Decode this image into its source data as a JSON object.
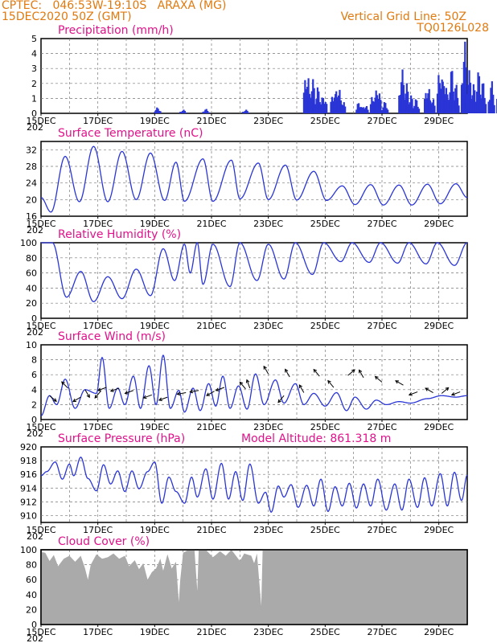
{
  "header": {
    "line1": "CPTEC:   046:53W-19:10S   ARAXA (MG)",
    "line2": "15DEC2020 50Z (GMT)",
    "right1": "Vertical Grid Line: 50Z",
    "right2": "TQ0126L028"
  },
  "colors": {
    "header": "#e07a10",
    "title": "#e0128a",
    "line": "#2a35d6",
    "cloud": "#aaaaaa"
  },
  "x_labels": [
    "15DEC",
    "17DEC",
    "19DEC",
    "21DEC",
    "23DEC",
    "25DEC",
    "27DEC",
    "29DEC"
  ],
  "x_stub": "202",
  "chart_data": [
    {
      "id": "precip",
      "type": "bar",
      "title": "Precipitation (mm/h)",
      "ylim": [
        0,
        5
      ],
      "yticks": [
        0,
        1,
        2,
        3,
        4,
        5
      ],
      "x_days": [
        0,
        15
      ],
      "events": [
        [
          4.1,
          0.4
        ],
        [
          5.0,
          0.25
        ],
        [
          5.8,
          0.3
        ],
        [
          7.2,
          0.25
        ],
        [
          9.35,
          3.0
        ],
        [
          9.55,
          2.4
        ],
        [
          9.75,
          1.8
        ],
        [
          9.95,
          1.3
        ],
        [
          10.3,
          1.6
        ],
        [
          10.45,
          2.0
        ],
        [
          10.6,
          1.0
        ],
        [
          11.2,
          0.8
        ],
        [
          11.4,
          0.6
        ],
        [
          11.7,
          1.4
        ],
        [
          11.85,
          1.9
        ],
        [
          12.1,
          0.8
        ],
        [
          12.7,
          3.0
        ],
        [
          12.85,
          2.1
        ],
        [
          13.0,
          1.3
        ],
        [
          13.2,
          1.0
        ],
        [
          13.6,
          2.0
        ],
        [
          13.75,
          1.2
        ],
        [
          14.05,
          3.2
        ],
        [
          14.2,
          2.6
        ],
        [
          14.45,
          3.1
        ],
        [
          14.6,
          2.0
        ],
        [
          14.9,
          4.9
        ],
        [
          15.05,
          3.0
        ],
        [
          15.2,
          2.1
        ],
        [
          15.4,
          2.9
        ],
        [
          15.55,
          2.2
        ],
        [
          15.85,
          2.2
        ],
        [
          16.15,
          2.3
        ],
        [
          16.3,
          1.6
        ],
        [
          16.6,
          2.8
        ],
        [
          16.75,
          1.8
        ],
        [
          17.05,
          2.0
        ],
        [
          17.2,
          1.3
        ],
        [
          17.55,
          3.1
        ],
        [
          17.7,
          1.9
        ],
        [
          17.95,
          1.4
        ],
        [
          18.35,
          2.4
        ],
        [
          18.5,
          1.7
        ]
      ]
    },
    {
      "id": "temp",
      "type": "line",
      "title": "Surface Temperature (nC)",
      "ylim": [
        16,
        34
      ],
      "yticks": [
        16,
        20,
        24,
        28,
        32
      ],
      "x_days": [
        0,
        15
      ],
      "peaks": [
        [
          0.0,
          20.5
        ],
        [
          0.35,
          17.0
        ],
        [
          0.85,
          30.4
        ],
        [
          1.35,
          19.5
        ],
        [
          1.85,
          32.8
        ],
        [
          2.35,
          19.5
        ],
        [
          2.85,
          31.6
        ],
        [
          3.35,
          20.0
        ],
        [
          3.85,
          31.2
        ],
        [
          4.35,
          19.8
        ],
        [
          4.75,
          29.0
        ],
        [
          5.05,
          19.6
        ],
        [
          5.7,
          29.8
        ],
        [
          6.05,
          19.6
        ],
        [
          6.7,
          29.5
        ],
        [
          7.0,
          20.2
        ],
        [
          7.65,
          28.8
        ],
        [
          8.0,
          20.0
        ],
        [
          8.6,
          28.3
        ],
        [
          9.0,
          19.9
        ],
        [
          9.6,
          26.8
        ],
        [
          10.05,
          19.8
        ],
        [
          10.6,
          23.3
        ],
        [
          11.05,
          18.8
        ],
        [
          11.6,
          23.6
        ],
        [
          12.05,
          18.7
        ],
        [
          12.6,
          23.5
        ],
        [
          13.05,
          18.7
        ],
        [
          13.6,
          23.7
        ],
        [
          14.05,
          19.0
        ],
        [
          14.6,
          23.8
        ],
        [
          15.0,
          20.5
        ]
      ]
    },
    {
      "id": "rh",
      "type": "line",
      "title": "Relative Humidity (%)",
      "ylim": [
        0,
        100
      ],
      "yticks": [
        0,
        20,
        40,
        60,
        80,
        100
      ],
      "x_days": [
        0,
        15
      ],
      "peaks": [
        [
          0.0,
          100
        ],
        [
          0.4,
          100
        ],
        [
          0.9,
          28
        ],
        [
          1.4,
          62
        ],
        [
          1.85,
          22
        ],
        [
          2.35,
          55
        ],
        [
          2.85,
          26
        ],
        [
          3.35,
          65
        ],
        [
          3.85,
          30
        ],
        [
          4.3,
          92
        ],
        [
          4.7,
          50
        ],
        [
          5.05,
          98
        ],
        [
          5.25,
          60
        ],
        [
          5.5,
          100
        ],
        [
          5.7,
          45
        ],
        [
          6.05,
          98
        ],
        [
          6.65,
          42
        ],
        [
          7.0,
          100
        ],
        [
          7.6,
          50
        ],
        [
          8.0,
          98
        ],
        [
          8.55,
          52
        ],
        [
          8.95,
          100
        ],
        [
          9.55,
          58
        ],
        [
          9.95,
          100
        ],
        [
          10.55,
          75
        ],
        [
          10.95,
          100
        ],
        [
          11.55,
          74
        ],
        [
          11.95,
          100
        ],
        [
          12.55,
          73
        ],
        [
          12.95,
          100
        ],
        [
          13.55,
          72
        ],
        [
          13.95,
          100
        ],
        [
          14.55,
          70
        ],
        [
          15.0,
          100
        ]
      ]
    },
    {
      "id": "wind",
      "type": "line",
      "title": "Surface Wind (m/s)",
      "ylim": [
        0,
        10
      ],
      "yticks": [
        0,
        2,
        4,
        6,
        8,
        10
      ],
      "x_days": [
        0,
        15
      ],
      "peaks": [
        [
          0.0,
          0.5
        ],
        [
          0.3,
          3.2
        ],
        [
          0.55,
          2.0
        ],
        [
          0.85,
          5.4
        ],
        [
          1.2,
          1.5
        ],
        [
          1.55,
          4.0
        ],
        [
          1.95,
          3.5
        ],
        [
          2.15,
          8.3
        ],
        [
          2.4,
          1.5
        ],
        [
          2.7,
          4.2
        ],
        [
          2.95,
          2.0
        ],
        [
          3.25,
          5.8
        ],
        [
          3.5,
          1.5
        ],
        [
          3.8,
          7.2
        ],
        [
          4.05,
          2.0
        ],
        [
          4.3,
          8.6
        ],
        [
          4.55,
          1.5
        ],
        [
          4.85,
          3.9
        ],
        [
          5.05,
          1.0
        ],
        [
          5.35,
          4.2
        ],
        [
          5.6,
          1.2
        ],
        [
          5.9,
          4.8
        ],
        [
          6.15,
          1.8
        ],
        [
          6.4,
          5.8
        ],
        [
          6.65,
          1.5
        ],
        [
          6.95,
          4.5
        ],
        [
          7.25,
          1.4
        ],
        [
          7.55,
          6.1
        ],
        [
          7.85,
          2.0
        ],
        [
          8.25,
          5.3
        ],
        [
          8.55,
          2.2
        ],
        [
          8.95,
          4.8
        ],
        [
          9.25,
          2.0
        ],
        [
          9.6,
          3.5
        ],
        [
          10.0,
          1.8
        ],
        [
          10.4,
          3.6
        ],
        [
          10.75,
          1.2
        ],
        [
          11.05,
          3.0
        ],
        [
          11.45,
          1.4
        ],
        [
          11.8,
          2.6
        ],
        [
          12.15,
          2.0
        ],
        [
          12.6,
          2.4
        ],
        [
          13.0,
          2.2
        ],
        [
          13.6,
          2.8
        ],
        [
          14.1,
          3.2
        ],
        [
          14.6,
          3.0
        ],
        [
          15.0,
          3.2
        ]
      ],
      "arrows": [
        [
          0.3,
          3.2,
          -40
        ],
        [
          0.95,
          4.2,
          135
        ],
        [
          1.4,
          3.0,
          210
        ],
        [
          1.55,
          4.0,
          -60
        ],
        [
          2.1,
          3.8,
          230
        ],
        [
          2.3,
          4.3,
          200
        ],
        [
          2.75,
          4.2,
          200
        ],
        [
          3.25,
          3.9,
          200
        ],
        [
          3.9,
          3.3,
          200
        ],
        [
          4.45,
          3.0,
          200
        ],
        [
          5.1,
          3.6,
          190
        ],
        [
          5.55,
          3.9,
          190
        ],
        [
          6.1,
          3.8,
          210
        ],
        [
          6.45,
          4.3,
          200
        ],
        [
          7.2,
          4.1,
          130
        ],
        [
          7.35,
          4.2,
          110
        ],
        [
          8.0,
          6.1,
          120
        ],
        [
          8.55,
          3.2,
          230
        ],
        [
          8.75,
          5.7,
          120
        ],
        [
          9.25,
          3.6,
          120
        ],
        [
          9.8,
          5.8,
          130
        ],
        [
          10.3,
          4.3,
          130
        ],
        [
          10.8,
          5.9,
          40
        ],
        [
          11.35,
          5.6,
          120
        ],
        [
          12.0,
          5.0,
          140
        ],
        [
          12.75,
          4.6,
          150
        ],
        [
          13.25,
          3.7,
          200
        ],
        [
          13.8,
          3.6,
          150
        ],
        [
          14.1,
          3.5,
          40
        ],
        [
          14.75,
          3.7,
          200
        ]
      ]
    },
    {
      "id": "pres",
      "type": "line",
      "title": "Surface Pressure (hPa)",
      "annotation": "Model Altitude:  861.318  m",
      "ylim": [
        909,
        920
      ],
      "yticks": [
        910,
        912,
        914,
        916,
        918,
        920
      ],
      "x_days": [
        0,
        15
      ],
      "peaks": [
        [
          0.0,
          915.8
        ],
        [
          0.2,
          916.4
        ],
        [
          0.5,
          917.8
        ],
        [
          0.75,
          915.3
        ],
        [
          1.0,
          917.5
        ],
        [
          1.15,
          915.8
        ],
        [
          1.4,
          918.5
        ],
        [
          1.65,
          915.4
        ],
        [
          1.95,
          913.6
        ],
        [
          2.2,
          917.4
        ],
        [
          2.45,
          914.6
        ],
        [
          2.7,
          916.5
        ],
        [
          2.95,
          913.5
        ],
        [
          3.2,
          916.5
        ],
        [
          3.45,
          913.9
        ],
        [
          3.75,
          916.4
        ],
        [
          4.0,
          917.8
        ],
        [
          4.25,
          911.8
        ],
        [
          4.5,
          915.6
        ],
        [
          4.75,
          913.5
        ],
        [
          5.05,
          911.8
        ],
        [
          5.3,
          915.6
        ],
        [
          5.5,
          912.7
        ],
        [
          5.8,
          916.8
        ],
        [
          6.05,
          912.4
        ],
        [
          6.35,
          917.6
        ],
        [
          6.6,
          912.4
        ],
        [
          6.85,
          916.4
        ],
        [
          7.1,
          912.2
        ],
        [
          7.35,
          917.5
        ],
        [
          7.65,
          911.8
        ],
        [
          7.9,
          913.4
        ],
        [
          8.1,
          910.5
        ],
        [
          8.35,
          914.3
        ],
        [
          8.55,
          912.7
        ],
        [
          8.8,
          914.5
        ],
        [
          9.05,
          911.2
        ],
        [
          9.35,
          914.4
        ],
        [
          9.6,
          911.4
        ],
        [
          9.85,
          915.3
        ],
        [
          10.1,
          910.6
        ],
        [
          10.35,
          914.2
        ],
        [
          10.6,
          911.4
        ],
        [
          10.85,
          914.7
        ],
        [
          11.1,
          911.1
        ],
        [
          11.35,
          914.6
        ],
        [
          11.6,
          911.4
        ],
        [
          11.85,
          915.3
        ],
        [
          12.15,
          910.8
        ],
        [
          12.45,
          914.6
        ],
        [
          12.7,
          910.8
        ],
        [
          12.95,
          915.3
        ],
        [
          13.25,
          911.2
        ],
        [
          13.5,
          915.5
        ],
        [
          13.75,
          911.4
        ],
        [
          14.05,
          916.1
        ],
        [
          14.3,
          911.4
        ],
        [
          14.55,
          916.3
        ],
        [
          14.8,
          912.2
        ],
        [
          15.0,
          915.9
        ]
      ]
    },
    {
      "id": "cloud",
      "type": "area",
      "title": "Cloud Cover (%)",
      "ylim": [
        0,
        100
      ],
      "yticks": [
        0,
        20,
        40,
        60,
        80,
        100
      ],
      "x_days": [
        0,
        15
      ],
      "profile": [
        [
          0.0,
          97
        ],
        [
          0.15,
          96
        ],
        [
          0.3,
          85
        ],
        [
          0.45,
          93
        ],
        [
          0.6,
          78
        ],
        [
          0.8,
          88
        ],
        [
          1.0,
          92
        ],
        [
          1.2,
          84
        ],
        [
          1.4,
          92
        ],
        [
          1.55,
          75
        ],
        [
          1.65,
          60
        ],
        [
          1.75,
          80
        ],
        [
          1.95,
          94
        ],
        [
          2.15,
          88
        ],
        [
          2.35,
          90
        ],
        [
          2.55,
          95
        ],
        [
          2.75,
          88
        ],
        [
          2.95,
          92
        ],
        [
          3.1,
          78
        ],
        [
          3.3,
          86
        ],
        [
          3.45,
          74
        ],
        [
          3.6,
          82
        ],
        [
          3.75,
          60
        ],
        [
          3.9,
          70
        ],
        [
          4.05,
          75
        ],
        [
          4.2,
          88
        ],
        [
          4.3,
          72
        ],
        [
          4.45,
          94
        ],
        [
          4.6,
          75
        ],
        [
          4.75,
          84
        ],
        [
          4.85,
          30
        ],
        [
          4.9,
          60
        ],
        [
          5.0,
          96
        ],
        [
          5.2,
          100
        ],
        [
          5.4,
          100
        ],
        [
          5.5,
          45
        ],
        [
          5.55,
          100
        ],
        [
          5.8,
          100
        ],
        [
          6.05,
          90
        ],
        [
          6.3,
          98
        ],
        [
          6.5,
          92
        ],
        [
          6.7,
          100
        ],
        [
          7.0,
          85
        ],
        [
          7.15,
          95
        ],
        [
          7.4,
          92
        ],
        [
          7.5,
          82
        ],
        [
          7.6,
          95
        ],
        [
          7.75,
          25
        ],
        [
          7.8,
          100
        ],
        [
          8.0,
          100
        ],
        [
          15.0,
          100
        ]
      ]
    }
  ]
}
